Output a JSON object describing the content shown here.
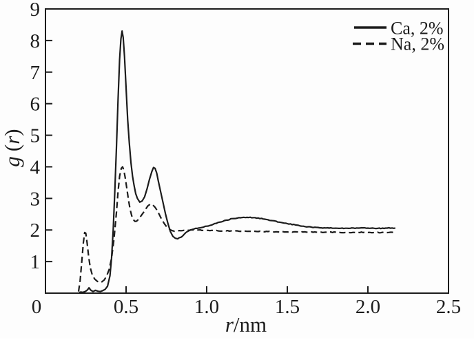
{
  "figure": {
    "background": "#fdfdfd",
    "ink_color": "#1c1c1c"
  },
  "chart_data": {
    "type": "line",
    "title": "",
    "xlabel": "r/nm",
    "ylabel": "g (r)",
    "xlabel_parts": {
      "italic": "r",
      "rest": "/nm"
    },
    "ylabel_parts": {
      "lead_italic": "g",
      "open": "(",
      "arg_italic": "r",
      "close": ")"
    },
    "xlim": [
      0,
      2.5
    ],
    "ylim": [
      0,
      9
    ],
    "x_ticks": [
      0,
      0.5,
      1.0,
      1.5,
      2.0,
      2.5
    ],
    "x_tick_labels": [
      "0",
      "0.5",
      "1.0",
      "1.5",
      "2.0",
      "2.5"
    ],
    "y_ticks": [
      0,
      1,
      2,
      3,
      4,
      5,
      6,
      7,
      8,
      9
    ],
    "y_tick_labels": [
      "0",
      "1",
      "2",
      "3",
      "4",
      "5",
      "6",
      "7",
      "8",
      "9"
    ],
    "grid": false,
    "legend_position": "top-right",
    "series": [
      {
        "name": "Ca, 2%",
        "line_style": "solid",
        "color": "#1c1c1c",
        "points": [
          [
            0.21,
            0.02
          ],
          [
            0.24,
            0.04
          ],
          [
            0.26,
            0.1
          ],
          [
            0.27,
            0.17
          ],
          [
            0.28,
            0.1
          ],
          [
            0.295,
            0.05
          ],
          [
            0.31,
            0.09
          ],
          [
            0.325,
            0.06
          ],
          [
            0.34,
            0.05
          ],
          [
            0.355,
            0.08
          ],
          [
            0.37,
            0.12
          ],
          [
            0.385,
            0.22
          ],
          [
            0.4,
            0.55
          ],
          [
            0.41,
            1.1
          ],
          [
            0.42,
            2.0
          ],
          [
            0.43,
            3.2
          ],
          [
            0.44,
            4.6
          ],
          [
            0.45,
            6.1
          ],
          [
            0.46,
            7.4
          ],
          [
            0.468,
            8.05
          ],
          [
            0.475,
            8.3
          ],
          [
            0.482,
            8.1
          ],
          [
            0.49,
            7.5
          ],
          [
            0.5,
            6.5
          ],
          [
            0.51,
            5.5
          ],
          [
            0.52,
            4.75
          ],
          [
            0.53,
            4.15
          ],
          [
            0.54,
            3.7
          ],
          [
            0.55,
            3.4
          ],
          [
            0.56,
            3.15
          ],
          [
            0.57,
            3.0
          ],
          [
            0.585,
            2.88
          ],
          [
            0.6,
            2.92
          ],
          [
            0.615,
            3.05
          ],
          [
            0.63,
            3.3
          ],
          [
            0.645,
            3.6
          ],
          [
            0.66,
            3.85
          ],
          [
            0.67,
            3.98
          ],
          [
            0.68,
            3.95
          ],
          [
            0.69,
            3.8
          ],
          [
            0.7,
            3.55
          ],
          [
            0.715,
            3.2
          ],
          [
            0.73,
            2.85
          ],
          [
            0.745,
            2.5
          ],
          [
            0.76,
            2.2
          ],
          [
            0.775,
            1.95
          ],
          [
            0.79,
            1.8
          ],
          [
            0.805,
            1.74
          ],
          [
            0.82,
            1.72
          ],
          [
            0.84,
            1.77
          ],
          [
            0.86,
            1.86
          ],
          [
            0.88,
            1.95
          ],
          [
            0.9,
            2.0
          ],
          [
            0.93,
            2.05
          ],
          [
            0.97,
            2.08
          ],
          [
            1.0,
            2.12
          ],
          [
            1.04,
            2.18
          ],
          [
            1.08,
            2.25
          ],
          [
            1.12,
            2.31
          ],
          [
            1.16,
            2.36
          ],
          [
            1.2,
            2.39
          ],
          [
            1.25,
            2.4
          ],
          [
            1.3,
            2.39
          ],
          [
            1.35,
            2.35
          ],
          [
            1.4,
            2.3
          ],
          [
            1.45,
            2.25
          ],
          [
            1.5,
            2.2
          ],
          [
            1.55,
            2.16
          ],
          [
            1.6,
            2.12
          ],
          [
            1.65,
            2.09
          ],
          [
            1.7,
            2.07
          ],
          [
            1.76,
            2.06
          ],
          [
            1.82,
            2.05
          ],
          [
            1.88,
            2.05
          ],
          [
            1.94,
            2.06
          ],
          [
            2.0,
            2.06
          ],
          [
            2.06,
            2.05
          ],
          [
            2.12,
            2.06
          ],
          [
            2.17,
            2.06
          ]
        ]
      },
      {
        "name": "Na, 2%",
        "line_style": "dashed",
        "color": "#1c1c1c",
        "points": [
          [
            0.205,
            0.05
          ],
          [
            0.215,
            0.4
          ],
          [
            0.225,
            1.0
          ],
          [
            0.235,
            1.6
          ],
          [
            0.243,
            1.92
          ],
          [
            0.25,
            1.9
          ],
          [
            0.258,
            1.6
          ],
          [
            0.268,
            1.15
          ],
          [
            0.278,
            0.8
          ],
          [
            0.29,
            0.58
          ],
          [
            0.305,
            0.45
          ],
          [
            0.32,
            0.38
          ],
          [
            0.335,
            0.34
          ],
          [
            0.35,
            0.36
          ],
          [
            0.365,
            0.42
          ],
          [
            0.38,
            0.55
          ],
          [
            0.395,
            0.75
          ],
          [
            0.41,
            1.1
          ],
          [
            0.425,
            1.7
          ],
          [
            0.44,
            2.55
          ],
          [
            0.45,
            3.2
          ],
          [
            0.46,
            3.7
          ],
          [
            0.47,
            3.95
          ],
          [
            0.478,
            4.0
          ],
          [
            0.486,
            3.9
          ],
          [
            0.495,
            3.65
          ],
          [
            0.505,
            3.3
          ],
          [
            0.515,
            2.95
          ],
          [
            0.525,
            2.65
          ],
          [
            0.535,
            2.45
          ],
          [
            0.545,
            2.33
          ],
          [
            0.555,
            2.27
          ],
          [
            0.565,
            2.28
          ],
          [
            0.58,
            2.35
          ],
          [
            0.6,
            2.5
          ],
          [
            0.62,
            2.65
          ],
          [
            0.635,
            2.76
          ],
          [
            0.65,
            2.82
          ],
          [
            0.665,
            2.8
          ],
          [
            0.68,
            2.72
          ],
          [
            0.695,
            2.6
          ],
          [
            0.71,
            2.45
          ],
          [
            0.725,
            2.3
          ],
          [
            0.74,
            2.18
          ],
          [
            0.755,
            2.08
          ],
          [
            0.77,
            2.02
          ],
          [
            0.785,
            1.98
          ],
          [
            0.8,
            1.96
          ],
          [
            0.83,
            1.98
          ],
          [
            0.86,
            1.99
          ],
          [
            0.9,
            2.0
          ],
          [
            0.95,
            2.0
          ],
          [
            1.0,
            1.99
          ],
          [
            1.05,
            1.98
          ],
          [
            1.1,
            1.97
          ],
          [
            1.15,
            1.97
          ],
          [
            1.2,
            1.96
          ],
          [
            1.26,
            1.96
          ],
          [
            1.32,
            1.95
          ],
          [
            1.38,
            1.95
          ],
          [
            1.44,
            1.94
          ],
          [
            1.5,
            1.94
          ],
          [
            1.56,
            1.94
          ],
          [
            1.62,
            1.93
          ],
          [
            1.68,
            1.93
          ],
          [
            1.74,
            1.93
          ],
          [
            1.8,
            1.93
          ],
          [
            1.86,
            1.92
          ],
          [
            1.92,
            1.92
          ],
          [
            1.98,
            1.93
          ],
          [
            2.04,
            1.92
          ],
          [
            2.1,
            1.92
          ],
          [
            2.17,
            1.92
          ]
        ]
      }
    ]
  }
}
